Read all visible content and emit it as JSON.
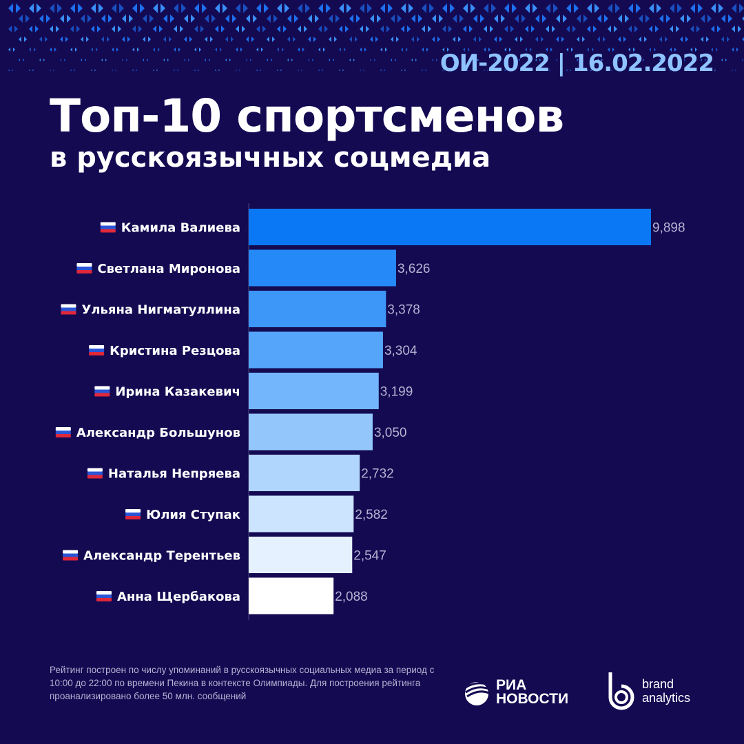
{
  "header": {
    "date_label": "ОИ-2022 | 16.02.2022"
  },
  "title": "Топ-10 спортсменов",
  "subtitle": "в русскоязычных соцмедиа",
  "chart_data": {
    "type": "bar",
    "orientation": "horizontal",
    "categories": [
      "Камила Валиева",
      "Светлана Миронова",
      "Ульяна Нигматуллина",
      "Кристина Резцова",
      "Ирина Казакевич",
      "Александр Большунов",
      "Наталья Непряева",
      "Юлия Ступак",
      "Александр Терентьев",
      "Анна Щербакова"
    ],
    "values": [
      9898,
      3626,
      3378,
      3304,
      3199,
      3050,
      2732,
      2582,
      2547,
      2088
    ],
    "value_labels": [
      "9,898",
      "3,626",
      "3,378",
      "3,304",
      "3,199",
      "3,050",
      "2,732",
      "2,582",
      "2,547",
      "2,088"
    ],
    "colors": [
      "#0a78f5",
      "#2589f7",
      "#3d97f8",
      "#55a6fa",
      "#74b6fb",
      "#93c7fc",
      "#b1d6fd",
      "#cde4fe",
      "#e6f1ff",
      "#ffffff"
    ],
    "flag_icon": "russia-flag-icon",
    "xlim": [
      0,
      9898
    ]
  },
  "footer": {
    "note": "Рейтинг построен по числу упоминаний в русскоязычных социальных медиа за период с 10:00 до 22:00 по времени Пекина в контексте Олимпиады. Для построения рейтинга проанализировано более 50 млн. сообщений",
    "ria_logo": [
      "РИА",
      "НОВОСТИ"
    ],
    "ba_logo": [
      "brand",
      "analytics"
    ]
  }
}
